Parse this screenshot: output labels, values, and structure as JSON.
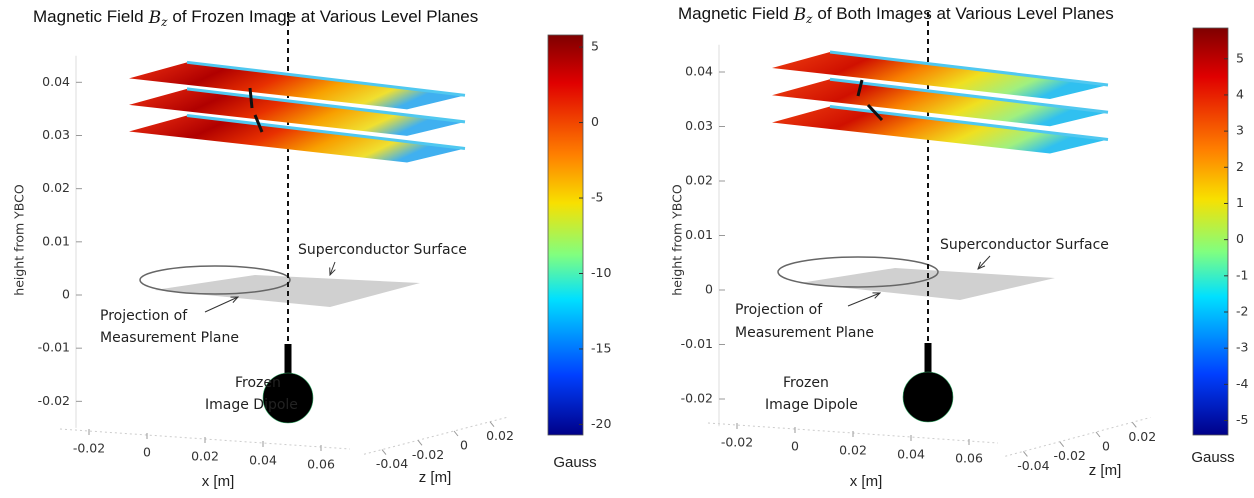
{
  "chart_data": [
    {
      "type": "surface3d",
      "title": {
        "prefix": "Magnetic Field",
        "symbol": "B",
        "subscript": "z",
        "suffix": "of Frozen Image at Various Level Planes"
      },
      "zlabel": "height from YBCO",
      "xlabel": "x [m]",
      "ylabel": "z [m]",
      "zlim": [
        -0.025,
        0.045
      ],
      "zticks": [
        -0.02,
        -0.01,
        0,
        0.01,
        0.02,
        0.03,
        0.04
      ],
      "xlim": [
        -0.03,
        0.07
      ],
      "xticks": [
        -0.02,
        0,
        0.02,
        0.04,
        0.06
      ],
      "ylim": [
        -0.05,
        0.03
      ],
      "yticks": [
        -0.04,
        -0.02,
        0,
        0.02
      ],
      "levels": [
        0.04,
        0.035,
        0.03
      ],
      "colorbar": {
        "label": "Gauss",
        "clim": [
          -20.7,
          5.8
        ],
        "ticks": [
          -20,
          -15,
          -10,
          -5,
          0,
          5
        ]
      },
      "annotations": [
        "Superconductor Surface",
        "Projection of",
        "Measurement Plane",
        "Frozen",
        "Image Dipole"
      ]
    },
    {
      "type": "surface3d",
      "title": {
        "prefix": "Magnetic Field",
        "symbol": "B",
        "subscript": "z",
        "suffix": "of Both Images at Various Level Planes"
      },
      "zlabel": "height from YBCO",
      "xlabel": "x [m]",
      "ylabel": "z [m]",
      "zlim": [
        -0.025,
        0.045
      ],
      "zticks": [
        -0.02,
        -0.01,
        0,
        0.01,
        0.02,
        0.03,
        0.04
      ],
      "xlim": [
        -0.03,
        0.07
      ],
      "xticks": [
        -0.02,
        0,
        0.02,
        0.04,
        0.06
      ],
      "ylim": [
        -0.05,
        0.03
      ],
      "yticks": [
        -0.04,
        -0.02,
        0,
        0.02
      ],
      "levels": [
        0.04,
        0.035,
        0.03
      ],
      "colorbar": {
        "label": "Gauss",
        "clim": [
          -5.4,
          5.85
        ],
        "ticks": [
          -5,
          -4,
          -3,
          -2,
          -1,
          0,
          1,
          2,
          3,
          4,
          5
        ]
      },
      "annotations": [
        "Superconductor Surface",
        "Projection of",
        "Measurement Plane",
        "Frozen",
        "Image Dipole"
      ]
    }
  ]
}
